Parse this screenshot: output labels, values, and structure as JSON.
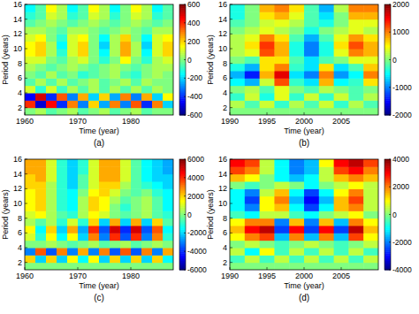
{
  "chart_data": [
    {
      "type": "heatmap",
      "title": "(a)",
      "x_label": "Time (year)",
      "y_label": "Period (years)",
      "xlim": [
        1960,
        1988
      ],
      "xticks": [
        1960,
        1970,
        1980
      ],
      "ylim": [
        1,
        16
      ],
      "yticks": [
        2,
        4,
        6,
        8,
        10,
        12,
        14,
        16
      ],
      "x_edges": [
        1960,
        1962,
        1964,
        1966,
        1968,
        1970,
        1972,
        1974,
        1976,
        1978,
        1980,
        1982,
        1984,
        1986,
        1988
      ],
      "y_edges": [
        1,
        2,
        3,
        4,
        5,
        6,
        7,
        8,
        9,
        10,
        11,
        12,
        13,
        14,
        15,
        16
      ],
      "values": [
        [
          0,
          50,
          -50,
          0,
          50,
          -50,
          0,
          50,
          -50,
          0,
          50,
          -50,
          0,
          0
        ],
        [
          400,
          -500,
          450,
          -400,
          300,
          -300,
          200,
          -250,
          300,
          -300,
          350,
          -400,
          300,
          -200
        ],
        [
          -450,
          500,
          -400,
          350,
          -300,
          250,
          -200,
          200,
          -250,
          300,
          -300,
          250,
          -200,
          150
        ],
        [
          100,
          -100,
          100,
          -80,
          50,
          -50,
          50,
          -50,
          50,
          -50,
          50,
          -50,
          50,
          0
        ],
        [
          -50,
          50,
          -50,
          50,
          -50,
          0,
          50,
          -50,
          0,
          50,
          -50,
          50,
          0,
          0
        ],
        [
          0,
          -50,
          50,
          -50,
          0,
          -100,
          -50,
          0,
          50,
          -50,
          -100,
          0,
          50,
          0
        ],
        [
          50,
          0,
          -50,
          0,
          50,
          0,
          -50,
          0,
          50,
          0,
          -50,
          0,
          50,
          50
        ],
        [
          100,
          100,
          0,
          -50,
          50,
          100,
          0,
          -100,
          0,
          150,
          0,
          -100,
          50,
          100
        ],
        [
          150,
          200,
          50,
          -100,
          100,
          200,
          0,
          -150,
          50,
          250,
          50,
          -150,
          100,
          200
        ],
        [
          150,
          200,
          50,
          -150,
          100,
          200,
          0,
          -200,
          50,
          250,
          50,
          -200,
          100,
          200
        ],
        [
          100,
          150,
          0,
          -100,
          100,
          150,
          0,
          -150,
          50,
          200,
          0,
          -150,
          100,
          150
        ],
        [
          50,
          50,
          0,
          -50,
          50,
          50,
          0,
          -50,
          0,
          50,
          0,
          -50,
          50,
          50
        ],
        [
          -50,
          0,
          50,
          0,
          -50,
          0,
          50,
          0,
          -50,
          0,
          50,
          0,
          -50,
          0
        ],
        [
          -100,
          -50,
          100,
          50,
          -100,
          -50,
          100,
          50,
          -100,
          0,
          100,
          50,
          -100,
          -50
        ],
        [
          -150,
          -50,
          150,
          50,
          -150,
          -50,
          150,
          50,
          -150,
          0,
          150,
          50,
          -150,
          -50
        ]
      ],
      "colorbar_lim": [
        -600,
        600
      ],
      "colorbar_ticks": [
        -600,
        -400,
        -200,
        0,
        200,
        400,
        600
      ]
    },
    {
      "type": "heatmap",
      "title": "(b)",
      "x_label": "Time (year)",
      "y_label": "Period (years)",
      "xlim": [
        1990,
        2010
      ],
      "xticks": [
        1990,
        1995,
        2000,
        2005
      ],
      "ylim": [
        1,
        16
      ],
      "yticks": [
        2,
        4,
        6,
        8,
        10,
        12,
        14,
        16
      ],
      "x_edges": [
        1990,
        1992,
        1994,
        1996,
        1998,
        2000,
        2002,
        2004,
        2006,
        2008,
        2010
      ],
      "y_edges": [
        1,
        2,
        3,
        4,
        5,
        6,
        7,
        8,
        9,
        10,
        11,
        12,
        13,
        14,
        15,
        16
      ],
      "values": [
        [
          0,
          0,
          0,
          0,
          0,
          0,
          0,
          0,
          0,
          0
        ],
        [
          200,
          -200,
          300,
          -300,
          200,
          -200,
          300,
          -300,
          200,
          -200
        ],
        [
          -300,
          300,
          -400,
          400,
          -300,
          300,
          -300,
          300,
          -200,
          200
        ],
        [
          0,
          200,
          -200,
          400,
          0,
          -200,
          200,
          0,
          -200,
          0
        ],
        [
          -500,
          -800,
          300,
          1200,
          -300,
          -600,
          800,
          -500,
          -300,
          600
        ],
        [
          -800,
          -1400,
          800,
          1600,
          -600,
          -1000,
          1000,
          -900,
          -500,
          1000
        ],
        [
          -400,
          -800,
          600,
          1000,
          -300,
          -600,
          600,
          -600,
          -200,
          700
        ],
        [
          0,
          -200,
          600,
          600,
          -200,
          -600,
          -200,
          0,
          400,
          400
        ],
        [
          200,
          400,
          1200,
          800,
          -400,
          -1000,
          -400,
          400,
          1000,
          800
        ],
        [
          200,
          600,
          1300,
          800,
          -400,
          -1000,
          -400,
          600,
          1200,
          800
        ],
        [
          200,
          400,
          1000,
          600,
          -200,
          -800,
          -200,
          400,
          900,
          600
        ],
        [
          0,
          200,
          400,
          200,
          0,
          -400,
          0,
          200,
          400,
          200
        ],
        [
          -200,
          0,
          300,
          400,
          200,
          -200,
          -400,
          0,
          400,
          400
        ],
        [
          -400,
          0,
          600,
          800,
          400,
          -200,
          -600,
          0,
          800,
          800
        ],
        [
          -400,
          0,
          800,
          1000,
          600,
          -200,
          -800,
          200,
          1000,
          1000
        ]
      ],
      "colorbar_lim": [
        -2000,
        2000
      ],
      "colorbar_ticks": [
        -2000,
        -1000,
        0,
        1000,
        2000
      ]
    },
    {
      "type": "heatmap",
      "title": "(c)",
      "x_label": "Time (year)",
      "y_label": "Period (years)",
      "xlim": [
        1960,
        1988
      ],
      "xticks": [
        1960,
        1970,
        1980
      ],
      "ylim": [
        1,
        16
      ],
      "yticks": [
        2,
        4,
        6,
        8,
        10,
        12,
        14,
        16
      ],
      "x_edges": [
        1960,
        1962,
        1964,
        1966,
        1968,
        1970,
        1972,
        1974,
        1976,
        1978,
        1980,
        1982,
        1984,
        1986,
        1988
      ],
      "y_edges": [
        1,
        2,
        3,
        4,
        5,
        6,
        7,
        8,
        9,
        10,
        11,
        12,
        13,
        14,
        15,
        16
      ],
      "values": [
        [
          0,
          0,
          0,
          0,
          0,
          0,
          0,
          0,
          0,
          0,
          0,
          0,
          0,
          0
        ],
        [
          2000,
          -2000,
          2000,
          -2000,
          1500,
          -1500,
          1500,
          -2000,
          2000,
          -2000,
          2000,
          -2000,
          2000,
          -1500
        ],
        [
          -3000,
          3500,
          -3500,
          3000,
          -3000,
          2500,
          -3000,
          3000,
          -3500,
          3500,
          -3500,
          3000,
          -3000,
          2500
        ],
        [
          0,
          0,
          500,
          0,
          -500,
          0,
          500,
          -500,
          0,
          500,
          -500,
          0,
          500,
          0
        ],
        [
          1000,
          -1000,
          1500,
          -1500,
          1500,
          -2000,
          3000,
          -3000,
          4000,
          -3500,
          4000,
          -3000,
          3000,
          -1000
        ],
        [
          1500,
          -1500,
          2000,
          -2000,
          2500,
          -2500,
          4000,
          -3500,
          5000,
          -4000,
          5000,
          -3500,
          3500,
          -1500
        ],
        [
          500,
          -500,
          500,
          -1000,
          1000,
          -1000,
          2000,
          -2000,
          2500,
          -2000,
          2500,
          -2000,
          2000,
          -500
        ],
        [
          1000,
          1500,
          500,
          -500,
          -1000,
          500,
          1500,
          1000,
          0,
          -500,
          0,
          500,
          -500,
          -1000
        ],
        [
          1500,
          2000,
          500,
          -1000,
          -1500,
          500,
          2000,
          1500,
          0,
          -1000,
          0,
          500,
          -500,
          -1500
        ],
        [
          1500,
          2000,
          500,
          -1000,
          -1500,
          500,
          2000,
          1500,
          500,
          -500,
          0,
          500,
          -500,
          -1500
        ],
        [
          1500,
          2000,
          500,
          -1000,
          -1500,
          0,
          1500,
          2000,
          1000,
          0,
          -500,
          0,
          -1000,
          -1500
        ],
        [
          2000,
          2000,
          500,
          -1000,
          -2000,
          -500,
          1000,
          2000,
          2000,
          500,
          -500,
          -1000,
          -1500,
          -2000
        ],
        [
          2000,
          2500,
          1000,
          -1000,
          -2000,
          -500,
          1000,
          2500,
          2500,
          1000,
          -500,
          -1500,
          -2000,
          -2000
        ],
        [
          2500,
          2500,
          1000,
          -1000,
          -2000,
          -1000,
          1000,
          2500,
          2500,
          1000,
          -500,
          -1500,
          -2000,
          -2500
        ],
        [
          2500,
          2500,
          1000,
          -1000,
          -2000,
          -1000,
          1000,
          2500,
          2500,
          1000,
          -500,
          -1500,
          -2000,
          -2500
        ]
      ],
      "colorbar_lim": [
        -6000,
        6000
      ],
      "colorbar_ticks": [
        -6000,
        -4000,
        -2000,
        0,
        2000,
        4000,
        6000
      ]
    },
    {
      "type": "heatmap",
      "title": "(d)",
      "x_label": "Time (year)",
      "y_label": "Period (years)",
      "xlim": [
        1990,
        2010
      ],
      "xticks": [
        1990,
        1995,
        2000,
        2005
      ],
      "ylim": [
        1,
        16
      ],
      "yticks": [
        2,
        4,
        6,
        8,
        10,
        12,
        14,
        16
      ],
      "x_edges": [
        1990,
        1992,
        1994,
        1996,
        1998,
        2000,
        2002,
        2004,
        2006,
        2008,
        2010
      ],
      "y_edges": [
        1,
        2,
        3,
        4,
        5,
        6,
        7,
        8,
        9,
        10,
        11,
        12,
        13,
        14,
        15,
        16
      ],
      "values": [
        [
          0,
          0,
          0,
          0,
          0,
          0,
          0,
          0,
          0,
          0
        ],
        [
          -500,
          500,
          -500,
          500,
          -500,
          500,
          -500,
          500,
          -500,
          500
        ],
        [
          500,
          -1000,
          1000,
          -500,
          500,
          -500,
          500,
          -500,
          500,
          -500
        ],
        [
          0,
          500,
          0,
          -500,
          0,
          500,
          0,
          -500,
          0,
          500
        ],
        [
          1000,
          2000,
          2500,
          -1500,
          2000,
          -1500,
          2000,
          -1500,
          2500,
          1000
        ],
        [
          1500,
          3000,
          3500,
          -2500,
          3000,
          -2500,
          3000,
          -2500,
          3500,
          1500
        ],
        [
          1000,
          2000,
          2000,
          -2000,
          1500,
          -2000,
          1500,
          -1500,
          2000,
          1000
        ],
        [
          -500,
          -1000,
          500,
          500,
          -500,
          -1000,
          0,
          500,
          1000,
          0
        ],
        [
          -1000,
          -2000,
          1000,
          1500,
          -1000,
          -2500,
          -1000,
          1500,
          2000,
          500
        ],
        [
          -1000,
          -2500,
          1000,
          2000,
          -1500,
          -3000,
          -1500,
          1500,
          2500,
          500
        ],
        [
          -1000,
          -2000,
          500,
          1500,
          -1000,
          -2500,
          -1000,
          1000,
          2000,
          500
        ],
        [
          0,
          -500,
          0,
          500,
          0,
          -1000,
          0,
          500,
          1000,
          500
        ],
        [
          1500,
          1000,
          0,
          -1000,
          -1500,
          -1000,
          500,
          1500,
          2000,
          1500
        ],
        [
          2500,
          2000,
          500,
          -1000,
          -2000,
          -1500,
          500,
          2500,
          3000,
          2000
        ],
        [
          3000,
          2500,
          500,
          -1000,
          -2000,
          -1500,
          1000,
          3000,
          3500,
          2500
        ]
      ],
      "colorbar_lim": [
        -4000,
        4000
      ],
      "colorbar_ticks": [
        -4000,
        -2000,
        0,
        2000,
        4000
      ]
    }
  ]
}
